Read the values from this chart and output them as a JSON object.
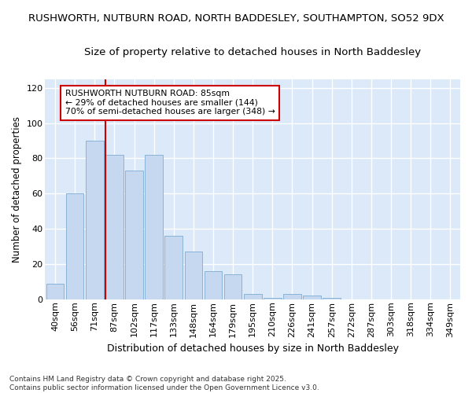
{
  "title_line1": "RUSHWORTH, NUTBURN ROAD, NORTH BADDESLEY, SOUTHAMPTON, SO52 9DX",
  "title_line2": "Size of property relative to detached houses in North Baddesley",
  "xlabel": "Distribution of detached houses by size in North Baddesley",
  "ylabel": "Number of detached properties",
  "categories": [
    "40sqm",
    "56sqm",
    "71sqm",
    "87sqm",
    "102sqm",
    "117sqm",
    "133sqm",
    "148sqm",
    "164sqm",
    "179sqm",
    "195sqm",
    "210sqm",
    "226sqm",
    "241sqm",
    "257sqm",
    "272sqm",
    "287sqm",
    "303sqm",
    "318sqm",
    "334sqm",
    "349sqm"
  ],
  "values": [
    9,
    60,
    90,
    82,
    73,
    82,
    36,
    27,
    16,
    14,
    3,
    1,
    3,
    2,
    1,
    0,
    0,
    0,
    0,
    0,
    0
  ],
  "bar_color": "#c5d8f0",
  "bar_edge_color": "#88b4d8",
  "plot_bg_color": "#dce9f8",
  "fig_bg_color": "#ffffff",
  "grid_color": "#ffffff",
  "ylim": [
    0,
    125
  ],
  "yticks": [
    0,
    20,
    40,
    60,
    80,
    100,
    120
  ],
  "vline_x": 3.0,
  "vline_color": "#cc0000",
  "annotation_text": "RUSHWORTH NUTBURN ROAD: 85sqm\n← 29% of detached houses are smaller (144)\n70% of semi-detached houses are larger (348) →",
  "annotation_box_edgecolor": "#cc0000",
  "annotation_box_facecolor": "#ffffff",
  "footer_line1": "Contains HM Land Registry data © Crown copyright and database right 2025.",
  "footer_line2": "Contains public sector information licensed under the Open Government Licence v3.0.",
  "title_fontsize": 9.5,
  "tick_fontsize": 8.0,
  "ylabel_fontsize": 8.5,
  "xlabel_fontsize": 9.0,
  "annot_fontsize": 7.8,
  "footer_fontsize": 6.5
}
